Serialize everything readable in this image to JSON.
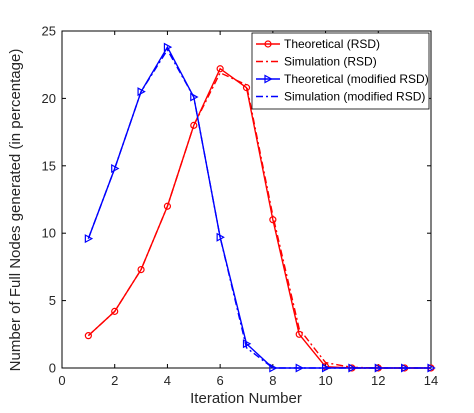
{
  "chart_data": {
    "type": "line",
    "xlabel": "Iteration Number",
    "ylabel": "Number of Full Nodes generated (in percentage)",
    "xlim": [
      0,
      14
    ],
    "ylim": [
      0,
      25
    ],
    "xticks": [
      0,
      2,
      4,
      6,
      8,
      10,
      12,
      14
    ],
    "yticks": [
      0,
      5,
      10,
      15,
      20,
      25
    ],
    "grid": false,
    "legend_position": "top-right",
    "series": [
      {
        "name": "Theoretical (RSD)",
        "color": "#ff0000",
        "line_style": "solid",
        "marker": "circle",
        "x": [
          1,
          2,
          3,
          4,
          5,
          6,
          7,
          8,
          9,
          10,
          11,
          12,
          13,
          14
        ],
        "values": [
          2.4,
          4.2,
          7.3,
          12.0,
          18.0,
          22.2,
          20.8,
          11.0,
          2.5,
          0.1,
          0.0,
          0.0,
          0.0,
          0.0
        ]
      },
      {
        "name": "Simulation (RSD)",
        "color": "#ff0000",
        "line_style": "dash-dot",
        "marker": "none",
        "x": [
          1,
          2,
          3,
          4,
          5,
          6,
          7,
          8,
          9,
          10,
          11,
          12,
          13,
          14
        ],
        "values": [
          2.4,
          4.2,
          7.3,
          12.0,
          18.0,
          21.9,
          21.0,
          11.3,
          2.9,
          0.4,
          0.05,
          0.0,
          0.0,
          0.0
        ]
      },
      {
        "name": "Theoretical (modified RSD)",
        "color": "#0000ff",
        "line_style": "solid",
        "marker": "triangle-right",
        "x": [
          1,
          2,
          3,
          4,
          5,
          6,
          7,
          8,
          9,
          10,
          11,
          12,
          13,
          14
        ],
        "values": [
          9.6,
          14.8,
          20.5,
          23.8,
          20.1,
          9.7,
          1.8,
          0.0,
          0.0,
          0.0,
          0.0,
          0.0,
          0.0,
          0.0
        ]
      },
      {
        "name": "Simulation (modified RSD)",
        "color": "#0000ff",
        "line_style": "dash-dot",
        "marker": "none",
        "x": [
          1,
          2,
          3,
          4,
          5,
          6,
          7,
          8,
          9,
          10,
          11,
          12,
          13,
          14
        ],
        "values": [
          9.6,
          14.8,
          20.5,
          23.6,
          20.1,
          9.7,
          1.5,
          0.0,
          0.0,
          0.0,
          0.0,
          0.0,
          0.0,
          0.0
        ]
      }
    ]
  }
}
